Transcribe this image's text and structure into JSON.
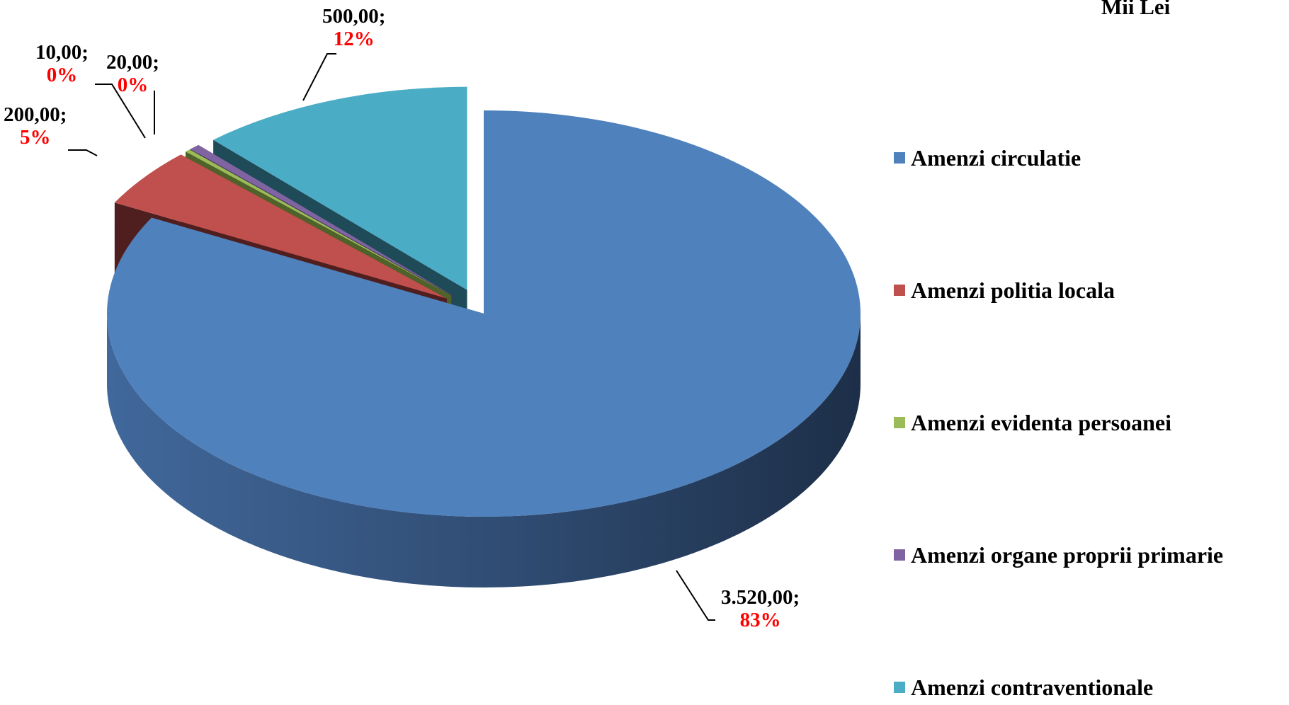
{
  "unit_label": "Mii Lei",
  "chart_data": {
    "type": "pie",
    "style": "3d-exploded",
    "slices": [
      {
        "label": "Amenzi circulatie",
        "value": 3520.0,
        "value_text": "3.520,00;",
        "percent_text": "83%",
        "color": "#4f81bd"
      },
      {
        "label": "Amenzi politia locala",
        "value": 200.0,
        "value_text": "200,00;",
        "percent_text": "5%",
        "color": "#c0504d"
      },
      {
        "label": "Amenzi evidenta persoanei",
        "value": 10.0,
        "value_text": "10,00;",
        "percent_text": "0%",
        "color": "#9bbb59"
      },
      {
        "label": "Amenzi organe proprii primarie",
        "value": 20.0,
        "value_text": "20,00;",
        "percent_text": "0%",
        "color": "#8064a2"
      },
      {
        "label": "Amenzi contraventionale",
        "value": 500.0,
        "value_text": "500,00;",
        "percent_text": "12%",
        "color": "#4bacc6"
      }
    ],
    "legend_position": "right"
  }
}
